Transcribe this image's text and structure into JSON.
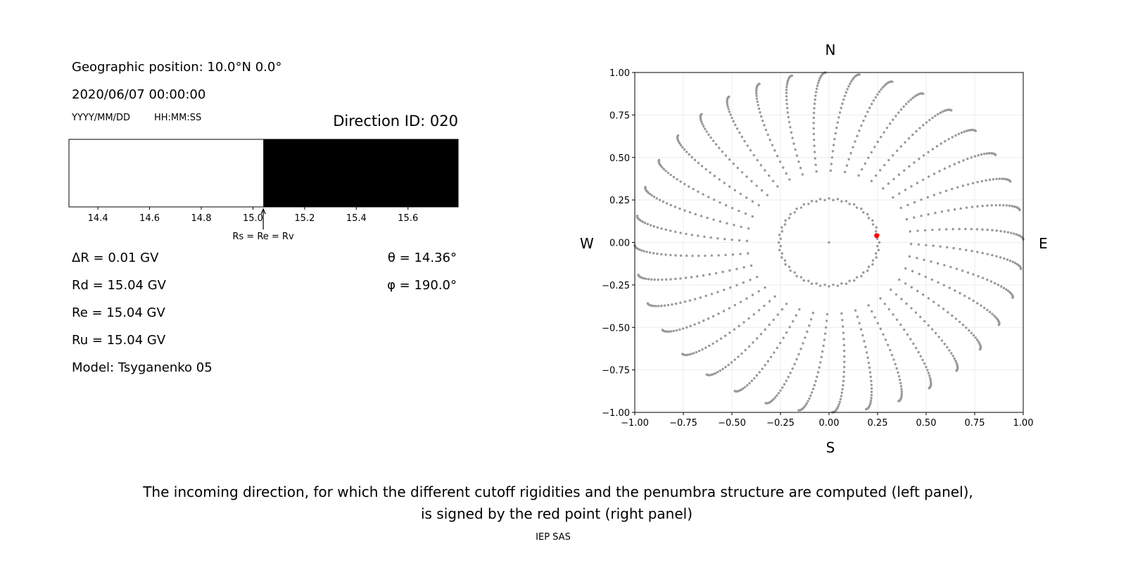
{
  "left_panel": {
    "geo_position": "Geographic position: 10.0°N 0.0°",
    "datetime": "2020/06/07 00:00:00",
    "date_format_label": "YYYY/MM/DD",
    "time_format_label": "HH:MM:SS",
    "direction_id": "Direction ID: 020",
    "delta_r": "ΔR = 0.01 GV",
    "rd": "Rd = 15.04 GV",
    "re": "Re = 15.04 GV",
    "ru": "Ru = 15.04 GV",
    "model": "Model: Tsyganenko 05",
    "theta": "θ = 14.36°",
    "phi": "φ = 190.0°",
    "marker_label": "Rs = Re = Rv"
  },
  "chart_data": [
    {
      "type": "bar",
      "description_role": "penumbra",
      "xlim": [
        14.288,
        15.794
      ],
      "xticks": [
        "14.4",
        "14.6",
        "14.8",
        "15.0",
        "15.2",
        "15.4",
        "15.6"
      ],
      "allowed_from": 15.04,
      "colors": {
        "forbidden": "#ffffff",
        "allowed": "#000000"
      },
      "marker_value": 15.04
    },
    {
      "type": "scatter",
      "xlim": [
        -1.0,
        1.0
      ],
      "ylim": [
        -1.0,
        1.0
      ],
      "xticks": [
        "−1.00",
        "−0.75",
        "−0.50",
        "−0.25",
        "0.00",
        "0.25",
        "0.50",
        "0.75",
        "1.00"
      ],
      "yticks": [
        "1.00",
        "0.75",
        "0.50",
        "0.25",
        "0.00",
        "−0.25",
        "−0.50",
        "−0.75",
        "−1.00"
      ],
      "grid": true,
      "compass": {
        "north": "N",
        "south": "S",
        "west": "W",
        "east": "E"
      },
      "grid_points": {
        "azimuth_step_deg": 10,
        "zenith_deg_range": [
          15,
          90
        ],
        "color": "#999999",
        "center_point": [
          0,
          0
        ]
      },
      "selected_point": {
        "x": 0.245,
        "y": 0.04,
        "color": "#ff0000"
      }
    }
  ],
  "caption": {
    "line1": "The incoming direction, for which the different cutoff rigidities and the penumbra structure are computed (left panel),",
    "line2": "is signed by the red point (right panel)",
    "credit": "IEP SAS"
  }
}
